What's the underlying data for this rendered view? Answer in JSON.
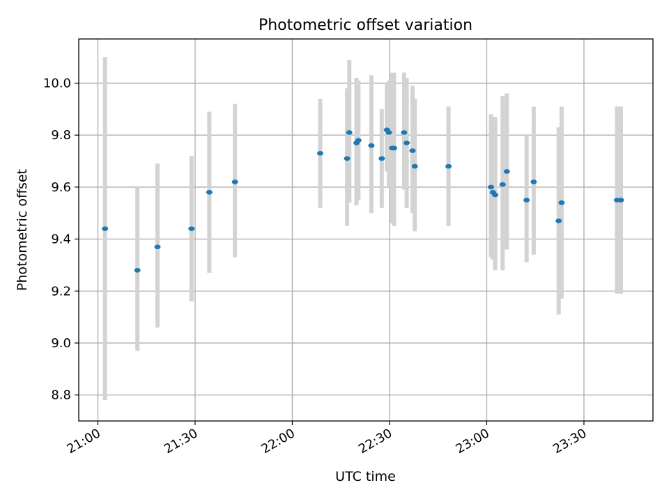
{
  "chart_data": {
    "type": "scatter",
    "title": "Photometric offset variation",
    "xlabel": "UTC time",
    "ylabel": "Photometric offset",
    "x_unit": "minutes",
    "x_ticks": [
      {
        "value": 1260,
        "label": "21:00"
      },
      {
        "value": 1290,
        "label": "21:30"
      },
      {
        "value": 1320,
        "label": "22:00"
      },
      {
        "value": 1350,
        "label": "22:30"
      },
      {
        "value": 1380,
        "label": "23:00"
      },
      {
        "value": 1410,
        "label": "23:30"
      }
    ],
    "y_ticks": [
      8.8,
      9.0,
      9.2,
      9.4,
      9.6,
      9.8,
      10.0
    ],
    "xlim": [
      1254.1,
      1431.3
    ],
    "ylim": [
      8.7,
      10.17
    ],
    "grid": true,
    "marker_color": "#1f77b4",
    "errorbar_color": "#d3d3d3",
    "points": [
      {
        "x": 1262.2,
        "y": 9.44,
        "lo": 8.78,
        "hi": 10.1
      },
      {
        "x": 1272.2,
        "y": 9.28,
        "lo": 8.97,
        "hi": 9.6
      },
      {
        "x": 1278.4,
        "y": 9.37,
        "lo": 9.06,
        "hi": 9.69
      },
      {
        "x": 1288.9,
        "y": 9.44,
        "lo": 9.16,
        "hi": 9.72
      },
      {
        "x": 1294.4,
        "y": 9.58,
        "lo": 9.27,
        "hi": 9.89
      },
      {
        "x": 1302.3,
        "y": 9.62,
        "lo": 9.33,
        "hi": 9.92
      },
      {
        "x": 1328.6,
        "y": 9.73,
        "lo": 9.52,
        "hi": 9.94
      },
      {
        "x": 1336.9,
        "y": 9.71,
        "lo": 9.45,
        "hi": 9.98
      },
      {
        "x": 1337.6,
        "y": 9.81,
        "lo": 9.54,
        "hi": 10.09
      },
      {
        "x": 1339.8,
        "y": 9.77,
        "lo": 9.53,
        "hi": 10.02
      },
      {
        "x": 1340.4,
        "y": 9.78,
        "lo": 9.55,
        "hi": 10.01
      },
      {
        "x": 1344.4,
        "y": 9.76,
        "lo": 9.5,
        "hi": 10.03
      },
      {
        "x": 1347.6,
        "y": 9.71,
        "lo": 9.52,
        "hi": 9.9
      },
      {
        "x": 1349.2,
        "y": 9.82,
        "lo": 9.66,
        "hi": 10.0
      },
      {
        "x": 1349.8,
        "y": 9.81,
        "lo": 9.6,
        "hi": 10.01
      },
      {
        "x": 1350.8,
        "y": 9.75,
        "lo": 9.46,
        "hi": 10.04
      },
      {
        "x": 1351.4,
        "y": 9.75,
        "lo": 9.45,
        "hi": 10.04
      },
      {
        "x": 1354.5,
        "y": 9.81,
        "lo": 9.59,
        "hi": 10.04
      },
      {
        "x": 1355.3,
        "y": 9.77,
        "lo": 9.52,
        "hi": 10.02
      },
      {
        "x": 1357.1,
        "y": 9.74,
        "lo": 9.5,
        "hi": 9.99
      },
      {
        "x": 1357.8,
        "y": 9.68,
        "lo": 9.43,
        "hi": 9.94
      },
      {
        "x": 1368.2,
        "y": 9.68,
        "lo": 9.45,
        "hi": 9.91
      },
      {
        "x": 1381.3,
        "y": 9.6,
        "lo": 9.33,
        "hi": 9.88
      },
      {
        "x": 1381.9,
        "y": 9.58,
        "lo": 9.32,
        "hi": 9.84
      },
      {
        "x": 1382.6,
        "y": 9.57,
        "lo": 9.28,
        "hi": 9.87
      },
      {
        "x": 1384.9,
        "y": 9.61,
        "lo": 9.28,
        "hi": 9.95
      },
      {
        "x": 1386.2,
        "y": 9.66,
        "lo": 9.36,
        "hi": 9.96
      },
      {
        "x": 1392.3,
        "y": 9.55,
        "lo": 9.31,
        "hi": 9.8
      },
      {
        "x": 1394.5,
        "y": 9.62,
        "lo": 9.34,
        "hi": 9.91
      },
      {
        "x": 1402.2,
        "y": 9.47,
        "lo": 9.11,
        "hi": 9.83
      },
      {
        "x": 1403.1,
        "y": 9.54,
        "lo": 9.17,
        "hi": 9.91
      },
      {
        "x": 1420.2,
        "y": 9.55,
        "lo": 9.19,
        "hi": 9.91
      },
      {
        "x": 1421.4,
        "y": 9.55,
        "lo": 9.19,
        "hi": 9.91
      }
    ]
  }
}
